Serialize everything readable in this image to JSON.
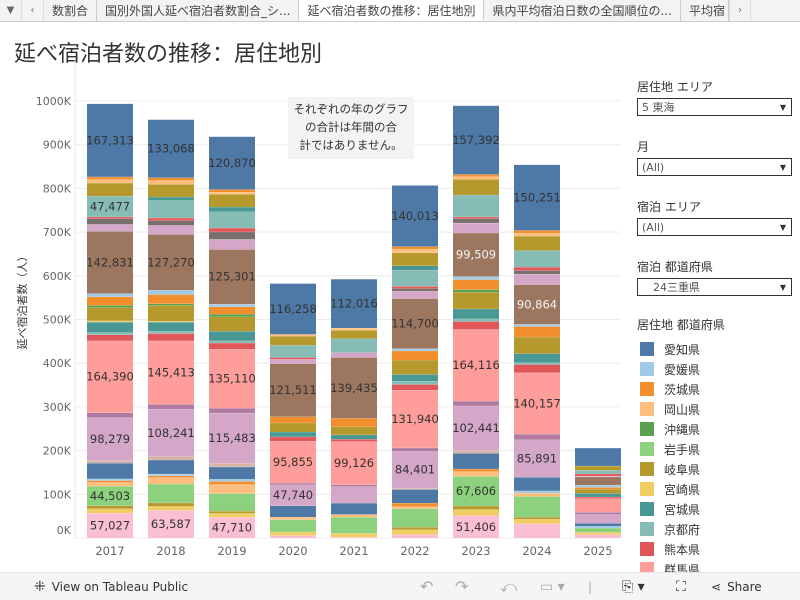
{
  "tabs": [
    "数割合",
    "国別外国人延べ宿泊者数割合_シ...",
    "延べ宿泊者数の推移：居住地別",
    "県内平均宿泊日数の全国順位の...",
    "平均宿"
  ],
  "active_tab": 2,
  "title": "延べ宿泊者数の推移：居住地別",
  "note": [
    "それぞれの年のグラフ",
    "の合計は年間の合",
    "計ではありません。"
  ],
  "filters": [
    {
      "label": "居住地 エリア",
      "value": "5 東海"
    },
    {
      "label": "月",
      "value": "(All)"
    },
    {
      "label": "宿泊 エリア",
      "value": "(All)"
    },
    {
      "label": "宿泊 都道府県",
      "value": "　24三重県"
    }
  ],
  "legend": {
    "title": "居住地 都道府県",
    "items": [
      {
        "label": "愛知県",
        "color": "#4E79A7"
      },
      {
        "label": "愛媛県",
        "color": "#A0CBE8"
      },
      {
        "label": "茨城県",
        "color": "#F28E2B"
      },
      {
        "label": "岡山県",
        "color": "#FFBE7D"
      },
      {
        "label": "沖縄県",
        "color": "#59A14F"
      },
      {
        "label": "岩手県",
        "color": "#8CD17D"
      },
      {
        "label": "岐阜県",
        "color": "#B6992D"
      },
      {
        "label": "宮崎県",
        "color": "#F1CE63"
      },
      {
        "label": "宮城県",
        "color": "#499894"
      },
      {
        "label": "京都府",
        "color": "#86BCB6"
      },
      {
        "label": "熊本県",
        "color": "#E15759"
      },
      {
        "label": "群馬県",
        "color": "#FF9D9A"
      }
    ]
  },
  "toolbar": {
    "view_label": "View on Tableau Public",
    "share_label": "Share"
  },
  "chart_data": {
    "type": "bar",
    "stacked": true,
    "ylabel": "延べ宿泊者数（人）",
    "ylim": [
      0,
      1000000
    ],
    "yticks": [
      "0K",
      "100K",
      "200K",
      "300K",
      "400K",
      "500K",
      "600K",
      "700K",
      "800K",
      "900K",
      "1000K"
    ],
    "categories": [
      "2017",
      "2018",
      "2019",
      "2020",
      "2021",
      "2022",
      "2023",
      "2024",
      "2025"
    ],
    "segment_colors": [
      "#FABFD2",
      "#F1CE63",
      "#B6992D",
      "#8CD17D",
      "#FFBE7D",
      "#F28E2B",
      "#A0CBE8",
      "#4E79A7",
      "#D7B5A6",
      "#D4A6C8",
      "#B07AA1",
      "#FF9D9A",
      "#E15759",
      "#86BCB6",
      "#499894",
      "#F1CE63",
      "#B6992D",
      "#59A14F",
      "#F28E2B",
      "#A0CBE8",
      "#9D7660",
      "#D4A6C8",
      "#79706E",
      "#E15759",
      "#86BCB6",
      "#499894",
      "#B6992D",
      "#FFBE7D",
      "#F28E2B",
      "#4E79A7"
    ],
    "values_k": [
      [
        57.0,
        10,
        7,
        44.5,
        9,
        4,
        4,
        36,
        6,
        98.3,
        11,
        164.4,
        14,
        5,
        24,
        3,
        30,
        5,
        20,
        7,
        142.8,
        16,
        13,
        4,
        47.5,
        0,
        30,
        8,
        6,
        167.3
      ],
      [
        63.6,
        9,
        8,
        43,
        15,
        4,
        4,
        32,
        8,
        108.2,
        11,
        145.4,
        17,
        5,
        21,
        2,
        36,
        4,
        21,
        10,
        127.3,
        21,
        11,
        6,
        40,
        8,
        29,
        9,
        6,
        133.1
      ],
      [
        47.7,
        9,
        5,
        40,
        21,
        7,
        5,
        28,
        8,
        115.5,
        11,
        135.1,
        14,
        5,
        22,
        0,
        33,
        6,
        17,
        6,
        125.3,
        23,
        17,
        9,
        37,
        11,
        29,
        5,
        6,
        120.9
      ],
      [
        6,
        8,
        0,
        28,
        6,
        0,
        0,
        26,
        0,
        47.7,
        4,
        95.9,
        10,
        0,
        11,
        0,
        21,
        0,
        14,
        0,
        121.5,
        10,
        0,
        4,
        28,
        0,
        21,
        4,
        0,
        116.3
      ],
      [
        2,
        9,
        0,
        37,
        6,
        0,
        0,
        26,
        0,
        38,
        4,
        99.1,
        5,
        0,
        10,
        0,
        19,
        0,
        19,
        0,
        139.4,
        11,
        0,
        0,
        32,
        0,
        19,
        5,
        0,
        112.0
      ],
      [
        8,
        11,
        6,
        42,
        5,
        8,
        0,
        31,
        3,
        84.4,
        8,
        131.9,
        13,
        8,
        15,
        0,
        33,
        0,
        21,
        5,
        114.7,
        17,
        6,
        5,
        37,
        10,
        30,
        8,
        6,
        140.0
      ],
      [
        51.4,
        14,
        8,
        67.6,
        11,
        6,
        0,
        36,
        6,
        102.4,
        11,
        164.1,
        18,
        6,
        23,
        0,
        38,
        6,
        23,
        7,
        99.5,
        23,
        10,
        4,
        50,
        0,
        36,
        6,
        5,
        157.4
      ],
      [
        33,
        10,
        5,
        47,
        8,
        0,
        5,
        31,
        0,
        85.9,
        13,
        140.2,
        19,
        4,
        21,
        0,
        38,
        0,
        24,
        5,
        90.9,
        24,
        8,
        8,
        38,
        0,
        33,
        7,
        6,
        150.3
      ],
      [
        8,
        5,
        0,
        10,
        0,
        0,
        4,
        7,
        0,
        20,
        5,
        31,
        4,
        0,
        8,
        0,
        10,
        0,
        4,
        5,
        19,
        2,
        0,
        5,
        8,
        0,
        10,
        0,
        0,
        41
      ]
    ],
    "labels": [
      [
        [
          0,
          "57,027"
        ],
        [
          3,
          "44,503"
        ],
        [
          9,
          "98,279"
        ],
        [
          11,
          "164,390"
        ],
        [
          20,
          "142,831"
        ],
        [
          24,
          "47,477"
        ],
        [
          29,
          "167,313"
        ]
      ],
      [
        [
          0,
          "63,587"
        ],
        [
          9,
          "108,241"
        ],
        [
          11,
          "145,413"
        ],
        [
          20,
          "127,270"
        ],
        [
          29,
          "133,068"
        ]
      ],
      [
        [
          0,
          "47,710"
        ],
        [
          9,
          "115,483"
        ],
        [
          11,
          "135,110"
        ],
        [
          20,
          "125,301"
        ],
        [
          29,
          "120,870"
        ]
      ],
      [
        [
          9,
          "47,740"
        ],
        [
          11,
          "95,855"
        ],
        [
          20,
          "121,511"
        ],
        [
          29,
          "116,258"
        ]
      ],
      [
        [
          11,
          "99,126"
        ],
        [
          20,
          "139,435"
        ],
        [
          29,
          "112,016"
        ]
      ],
      [
        [
          9,
          "84,401"
        ],
        [
          11,
          "131,940"
        ],
        [
          20,
          "114,700"
        ],
        [
          29,
          "140,013"
        ]
      ],
      [
        [
          0,
          "51,406"
        ],
        [
          3,
          "67,606"
        ],
        [
          9,
          "102,441"
        ],
        [
          11,
          "164,116"
        ],
        [
          20,
          "99,509",
          1
        ],
        [
          29,
          "157,392"
        ]
      ],
      [
        [
          9,
          "85,891"
        ],
        [
          11,
          "140,157"
        ],
        [
          20,
          "90,864",
          1
        ],
        [
          29,
          "150,251"
        ]
      ],
      []
    ]
  }
}
